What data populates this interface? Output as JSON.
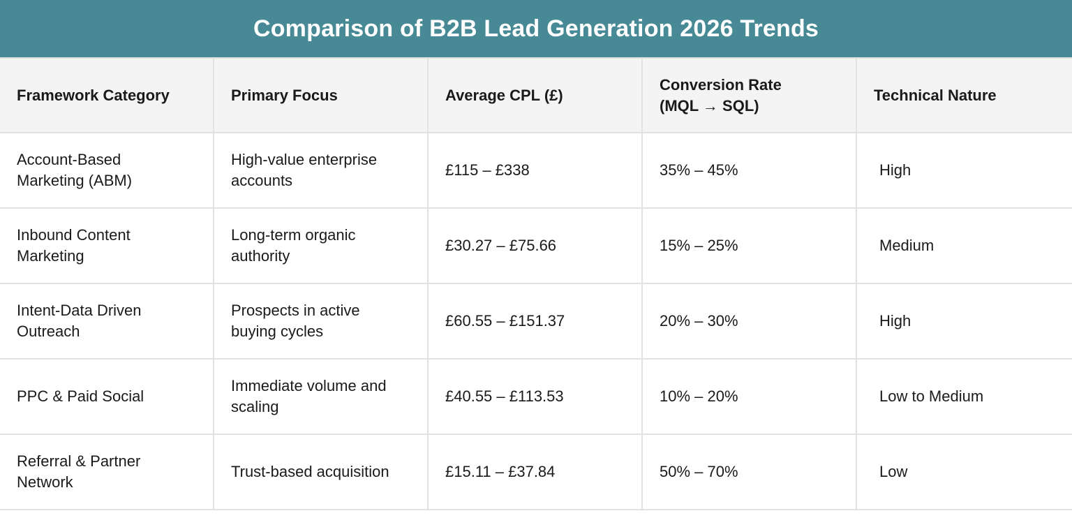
{
  "title": "Comparison of B2B Lead Generation 2026 Trends",
  "columns": [
    "Framework Category",
    "Primary Focus",
    "Average CPL (£)",
    "Conversion Rate (MQL → SQL)",
    "Technical Nature"
  ],
  "rows": [
    [
      "Account-Based Marketing (ABM)",
      "High-value enterprise accounts",
      "£115 – £338",
      "35% – 45%",
      "High"
    ],
    [
      "Inbound Content Marketing",
      "Long-term organic authority",
      "£30.27 – £75.66",
      "15% – 25%",
      "Medium"
    ],
    [
      "Intent-Data Driven Outreach",
      "Prospects in active buying cycles",
      "£60.55 – £151.37",
      "20% – 30%",
      "High"
    ],
    [
      "PPC & Paid Social",
      "Immediate volume and scaling",
      "£40.55 – £113.53",
      "10% – 20%",
      "Low to Medium"
    ],
    [
      "Referral & Partner Network",
      "Trust-based acquisition",
      "£15.11 – £37.84",
      "50% – 70%",
      "Low"
    ]
  ],
  "colors": {
    "title_bg": "#478a95",
    "header_bg": "#f4f4f4",
    "border": "#e2e2e2"
  }
}
